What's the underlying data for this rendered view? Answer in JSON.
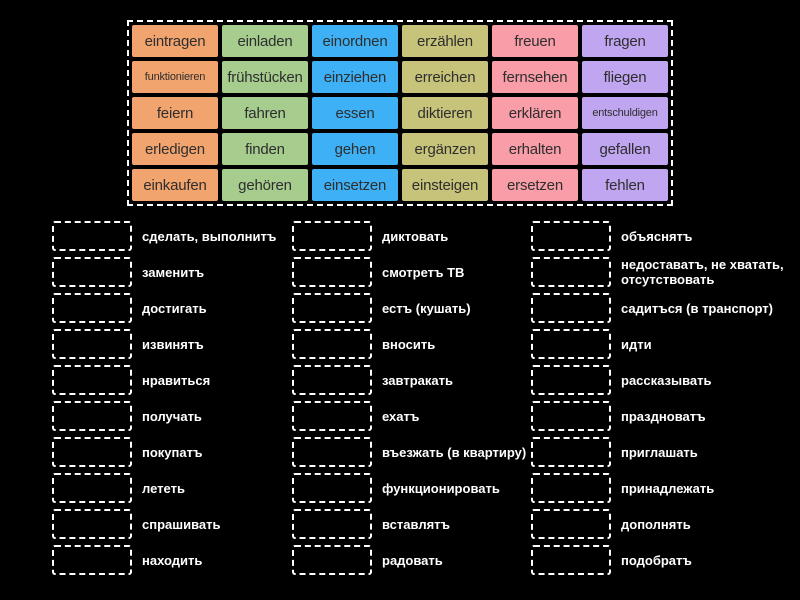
{
  "colors": {
    "background": "#000000",
    "tile_text": "#2e2e2e",
    "label_text": "#ffffff",
    "panel_border": "#ffffff",
    "slot_border": "#ffffff",
    "tile_columns": [
      "#f2a46f",
      "#a6cc8e",
      "#3eb1f6",
      "#c8c37a",
      "#f99ea9",
      "#c0a5f0"
    ]
  },
  "tile_panel": {
    "rows": [
      [
        "eintragen",
        "einladen",
        "einordnen",
        "erzählen",
        "freuen",
        "fragen"
      ],
      [
        "funktionieren",
        "frühstücken",
        "einziehen",
        "erreichen",
        "fernsehen",
        "fliegen"
      ],
      [
        "feiern",
        "fahren",
        "essen",
        "diktieren",
        "erklären",
        "entschuldigen"
      ],
      [
        "erledigen",
        "finden",
        "gehen",
        "ergänzen",
        "erhalten",
        "gefallen"
      ],
      [
        "einkaufen",
        "gehören",
        "einsetzen",
        "einsteigen",
        "ersetzen",
        "fehlen"
      ]
    ]
  },
  "match_columns": [
    {
      "items": [
        "сделать, выполнитъ",
        "заменитъ",
        "достигать",
        "извинятъ",
        "нравиться",
        "получать",
        "покупатъ",
        "лететь",
        "спрашивать",
        "находить"
      ]
    },
    {
      "items": [
        "диктовать",
        "смотретъ ТВ",
        "естъ (кушать)",
        "вносить",
        "завтракать",
        "ехатъ",
        "въезжать (в квартиру)",
        "функционировать",
        "вставлятъ",
        "радовать"
      ]
    },
    {
      "items": [
        "объяснятъ",
        "недоставатъ, не хватать, отсутствовать",
        "садитъся (в транспорт)",
        "идти",
        "рассказывать",
        "праздноватъ",
        "приглашать",
        "принадлежать",
        "дополнять",
        "подобратъ"
      ]
    }
  ]
}
